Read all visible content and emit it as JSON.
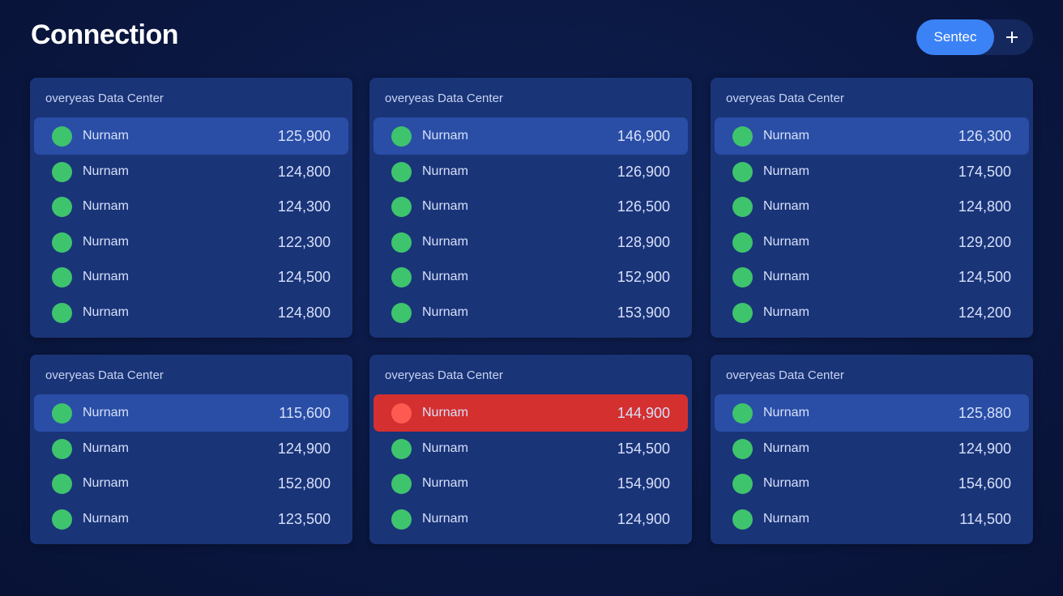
{
  "header": {
    "title": "Connection",
    "button": "Sentec"
  },
  "panels": [
    {
      "title": "overyeas Data Center",
      "rows": [
        {
          "name": "Nurnam",
          "value": "125,900",
          "status": "ok",
          "selected": true
        },
        {
          "name": "Nurnam",
          "value": "124,800",
          "status": "ok"
        },
        {
          "name": "Nurnam",
          "value": "124,300",
          "status": "ok"
        },
        {
          "name": "Nurnam",
          "value": "122,300",
          "status": "ok"
        },
        {
          "name": "Nurnam",
          "value": "124,500",
          "status": "ok"
        },
        {
          "name": "Nurnam",
          "value": "124,800",
          "status": "ok"
        }
      ]
    },
    {
      "title": "overyeas Data Center",
      "rows": [
        {
          "name": "Nurnam",
          "value": "146,900",
          "status": "ok",
          "selected": true
        },
        {
          "name": "Nurnam",
          "value": "126,900",
          "status": "ok"
        },
        {
          "name": "Nurnam",
          "value": "126,500",
          "status": "ok"
        },
        {
          "name": "Nurnam",
          "value": "128,900",
          "status": "ok"
        },
        {
          "name": "Nurnam",
          "value": "152,900",
          "status": "ok"
        },
        {
          "name": "Nurnam",
          "value": "153,900",
          "status": "ok"
        }
      ]
    },
    {
      "title": "overyeas Data Center",
      "rows": [
        {
          "name": "Nurnam",
          "value": "126,300",
          "status": "ok",
          "selected": true
        },
        {
          "name": "Nurnam",
          "value": "174,500",
          "status": "ok"
        },
        {
          "name": "Nurnam",
          "value": "124,800",
          "status": "ok"
        },
        {
          "name": "Nurnam",
          "value": "129,200",
          "status": "ok"
        },
        {
          "name": "Nurnam",
          "value": "124,500",
          "status": "ok"
        },
        {
          "name": "Nurnam",
          "value": "124,200",
          "status": "ok"
        }
      ]
    },
    {
      "title": "overyeas Data Center",
      "rows": [
        {
          "name": "Nurnam",
          "value": "115,600",
          "status": "ok",
          "selected": true
        },
        {
          "name": "Nurnam",
          "value": "124,900",
          "status": "ok"
        },
        {
          "name": "Nurnam",
          "value": "152,800",
          "status": "ok"
        },
        {
          "name": "Nurnam",
          "value": "123,500",
          "status": "ok"
        }
      ]
    },
    {
      "title": "overyeas Data Center",
      "rows": [
        {
          "name": "Nurnam",
          "value": "144,900",
          "status": "alert",
          "selected": true
        },
        {
          "name": "Nurnam",
          "value": "154,500",
          "status": "ok"
        },
        {
          "name": "Nurnam",
          "value": "154,900",
          "status": "ok"
        },
        {
          "name": "Nurnam",
          "value": "124,900",
          "status": "ok"
        }
      ]
    },
    {
      "title": "overyeas Data Center",
      "rows": [
        {
          "name": "Nurnam",
          "value": "125,880",
          "status": "ok",
          "selected": true
        },
        {
          "name": "Nurnam",
          "value": "124,900",
          "status": "ok"
        },
        {
          "name": "Nurnam",
          "value": "154,600",
          "status": "ok"
        },
        {
          "name": "Nurnam",
          "value": "114,500",
          "status": "ok"
        }
      ]
    }
  ]
}
